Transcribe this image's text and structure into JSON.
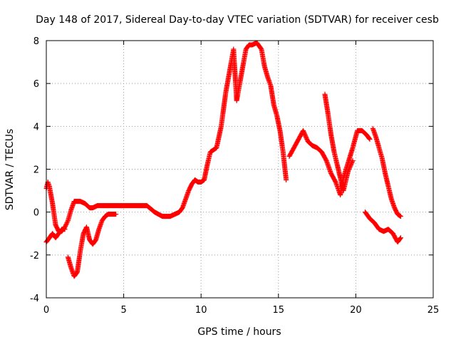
{
  "chart_data": {
    "type": "scatter",
    "title": "Day 148 of 2017, Sidereal Day-to-day VTEC variation (SDTVAR) for receiver cesb",
    "xlabel": "GPS time / hours",
    "ylabel": "SDTVAR / TECUs",
    "xlim": [
      0,
      25
    ],
    "ylim": [
      -4,
      8
    ],
    "xticks": [
      "0",
      "5",
      "10",
      "15",
      "20",
      "25"
    ],
    "yticks": [
      "-4",
      "-2",
      "0",
      "2",
      "4",
      "6",
      "8"
    ],
    "grid": true,
    "marker": "+",
    "color": "#ff0000",
    "series": [
      {
        "x": [
          0.0,
          0.1,
          0.2,
          0.3,
          0.4,
          0.5,
          0.6,
          0.8,
          1.0,
          1.2,
          1.4,
          1.6,
          1.8,
          2.0,
          2.2,
          2.5,
          2.8,
          3.0,
          3.3,
          3.6,
          4.0,
          4.5,
          5.0,
          5.5,
          6.0,
          6.5,
          7.0,
          7.5,
          8.0,
          8.3,
          8.6,
          8.8,
          9.0,
          9.2,
          9.4,
          9.6,
          9.8,
          10.0,
          10.2,
          10.4,
          10.6,
          10.8,
          11.0,
          11.3,
          11.6,
          11.9,
          12.1,
          12.3,
          12.5,
          12.7,
          12.9,
          13.1,
          13.3,
          13.6,
          13.9,
          14.1,
          14.3,
          14.5,
          14.7,
          14.9,
          15.1,
          15.3,
          15.5
        ],
        "y": [
          1.1,
          1.4,
          1.2,
          0.8,
          0.4,
          -0.1,
          -0.6,
          -0.9,
          -0.9,
          -0.7,
          -0.4,
          0.1,
          0.5,
          0.5,
          0.5,
          0.4,
          0.2,
          0.2,
          0.3,
          0.3,
          0.3,
          0.3,
          0.3,
          0.3,
          0.3,
          0.3,
          0.0,
          -0.2,
          -0.2,
          -0.1,
          0.0,
          0.2,
          0.6,
          1.0,
          1.3,
          1.5,
          1.4,
          1.4,
          1.5,
          2.2,
          2.8,
          2.9,
          3.0,
          4.0,
          5.6,
          6.8,
          7.6,
          5.2,
          6.0,
          6.8,
          7.6,
          7.8,
          7.8,
          7.9,
          7.6,
          6.8,
          6.3,
          5.9,
          5.0,
          4.5,
          3.8,
          2.8,
          1.5
        ]
      },
      {
        "x": [
          1.4,
          1.6,
          1.8,
          2.0,
          2.2,
          2.4,
          2.6,
          2.8,
          3.0,
          3.2,
          3.4,
          3.6,
          3.8,
          4.0,
          4.2,
          4.5
        ],
        "y": [
          -2.1,
          -2.6,
          -3.0,
          -2.8,
          -1.8,
          -1.0,
          -0.7,
          -1.3,
          -1.5,
          -1.3,
          -0.8,
          -0.4,
          -0.2,
          -0.1,
          -0.1,
          -0.1
        ]
      },
      {
        "x": [
          0.0,
          0.2,
          0.4,
          0.6,
          0.8,
          1.0,
          1.2
        ],
        "y": [
          -1.4,
          -1.2,
          -1.0,
          -1.2,
          -1.0,
          -0.8,
          -0.8
        ]
      },
      {
        "x": [
          15.7,
          16.0,
          16.3,
          16.6,
          16.9,
          17.2,
          17.5,
          17.8,
          18.1,
          18.4,
          18.7,
          19.0,
          19.2,
          19.5,
          19.8,
          20.1,
          20.4,
          20.7,
          20.9
        ],
        "y": [
          2.6,
          3.0,
          3.4,
          3.8,
          3.3,
          3.1,
          3.0,
          2.8,
          2.4,
          1.8,
          1.4,
          0.8,
          1.6,
          2.3,
          3.0,
          3.8,
          3.8,
          3.6,
          3.4
        ]
      },
      {
        "x": [
          18.0,
          18.2,
          18.4,
          18.6,
          18.8,
          19.0,
          19.2,
          19.5,
          19.8
        ],
        "y": [
          5.5,
          4.6,
          3.6,
          2.8,
          2.2,
          1.6,
          1.0,
          1.9,
          2.4
        ]
      },
      {
        "x": [
          20.6,
          20.9,
          21.2,
          21.5,
          21.8,
          22.1,
          22.4,
          22.7,
          22.9
        ],
        "y": [
          0.0,
          -0.3,
          -0.5,
          -0.8,
          -0.9,
          -0.8,
          -1.0,
          -1.4,
          -1.2
        ]
      },
      {
        "x": [
          21.1,
          21.3,
          21.5,
          21.7,
          21.9,
          22.1,
          22.3,
          22.5,
          22.7,
          22.9
        ],
        "y": [
          3.9,
          3.5,
          3.0,
          2.5,
          1.8,
          1.2,
          0.6,
          0.2,
          -0.1,
          -0.2
        ]
      }
    ]
  }
}
